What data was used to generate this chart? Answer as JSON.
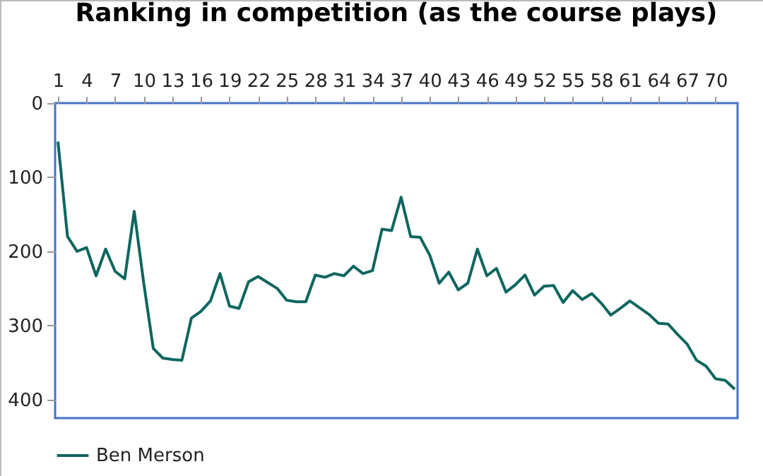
{
  "chart_data": {
    "type": "line",
    "title": "Ranking in competition (as the course plays)",
    "x": [
      1,
      2,
      3,
      4,
      5,
      6,
      7,
      8,
      9,
      10,
      11,
      12,
      13,
      14,
      15,
      16,
      17,
      18,
      19,
      20,
      21,
      22,
      23,
      24,
      25,
      26,
      27,
      28,
      29,
      30,
      31,
      32,
      33,
      34,
      35,
      36,
      37,
      38,
      39,
      40,
      41,
      42,
      43,
      44,
      45,
      46,
      47,
      48,
      49,
      50,
      51,
      52,
      53,
      54,
      55,
      56,
      57,
      58,
      59,
      60,
      61,
      62,
      63,
      64,
      65,
      66,
      67,
      68,
      69,
      70,
      71,
      72
    ],
    "series": [
      {
        "name": "Ben Merson",
        "color": "#0e6660",
        "values": [
          52,
          180,
          200,
          195,
          233,
          197,
          227,
          237,
          146,
          243,
          331,
          344,
          346,
          347,
          290,
          281,
          267,
          230,
          274,
          277,
          241,
          234,
          242,
          250,
          266,
          268,
          268,
          232,
          235,
          230,
          233,
          220,
          230,
          226,
          170,
          172,
          127,
          180,
          181,
          205,
          243,
          228,
          252,
          243,
          197,
          233,
          223,
          255,
          245,
          232,
          259,
          247,
          246,
          269,
          253,
          265,
          257,
          270,
          286,
          277,
          267,
          276,
          285,
          297,
          298,
          312,
          325,
          347,
          355,
          372,
          374,
          386
        ]
      }
    ],
    "xlim": [
      0.7,
      72.3
    ],
    "xticks": [
      1,
      4,
      7,
      10,
      13,
      16,
      19,
      22,
      25,
      28,
      31,
      34,
      37,
      40,
      43,
      46,
      49,
      52,
      55,
      58,
      61,
      64,
      67,
      70
    ],
    "ylim": [
      425,
      0
    ],
    "yticks": [
      0,
      100,
      200,
      300,
      400
    ],
    "grid": false,
    "legend": "bottom",
    "marker": "none",
    "line_style": "solid"
  }
}
